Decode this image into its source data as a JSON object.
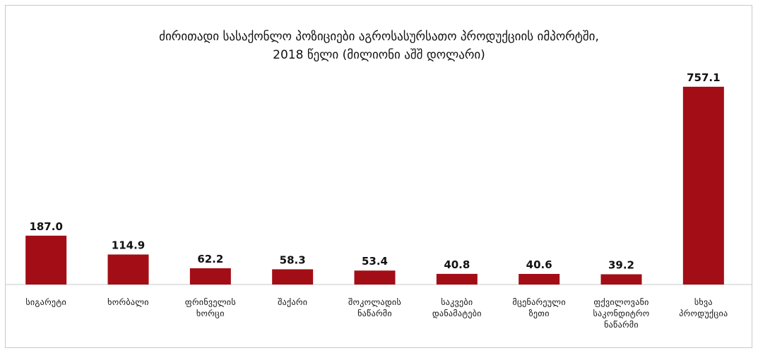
{
  "chart_data": {
    "type": "bar",
    "title": [
      "ძირითადი სასაქონლო პოზიციები აგროსასურსათო პროდუქციის იმპორტში,",
      "2018 წელი (მილიონი აშშ დოლარი)"
    ],
    "categories": [
      "სიგარეტი",
      "ხორბალი",
      "ფრინველის ხორცი",
      "შაქარი",
      "შოკოლადის ნაწარმი",
      "საკვები დანამატები",
      "მცენარეული ზეთი",
      "ფქვილოვანი საკონდიტრო ნაწარმი",
      "სხვა პროდუქცია"
    ],
    "values": [
      187.0,
      114.9,
      62.2,
      58.3,
      53.4,
      40.8,
      40.6,
      39.2,
      757.1
    ],
    "value_labels": [
      "187.0",
      "114.9",
      "62.2",
      "58.3",
      "53.4",
      "40.8",
      "40.6",
      "39.2",
      "757.1"
    ],
    "color": "#a30d15",
    "ylim": [
      0,
      800
    ]
  }
}
